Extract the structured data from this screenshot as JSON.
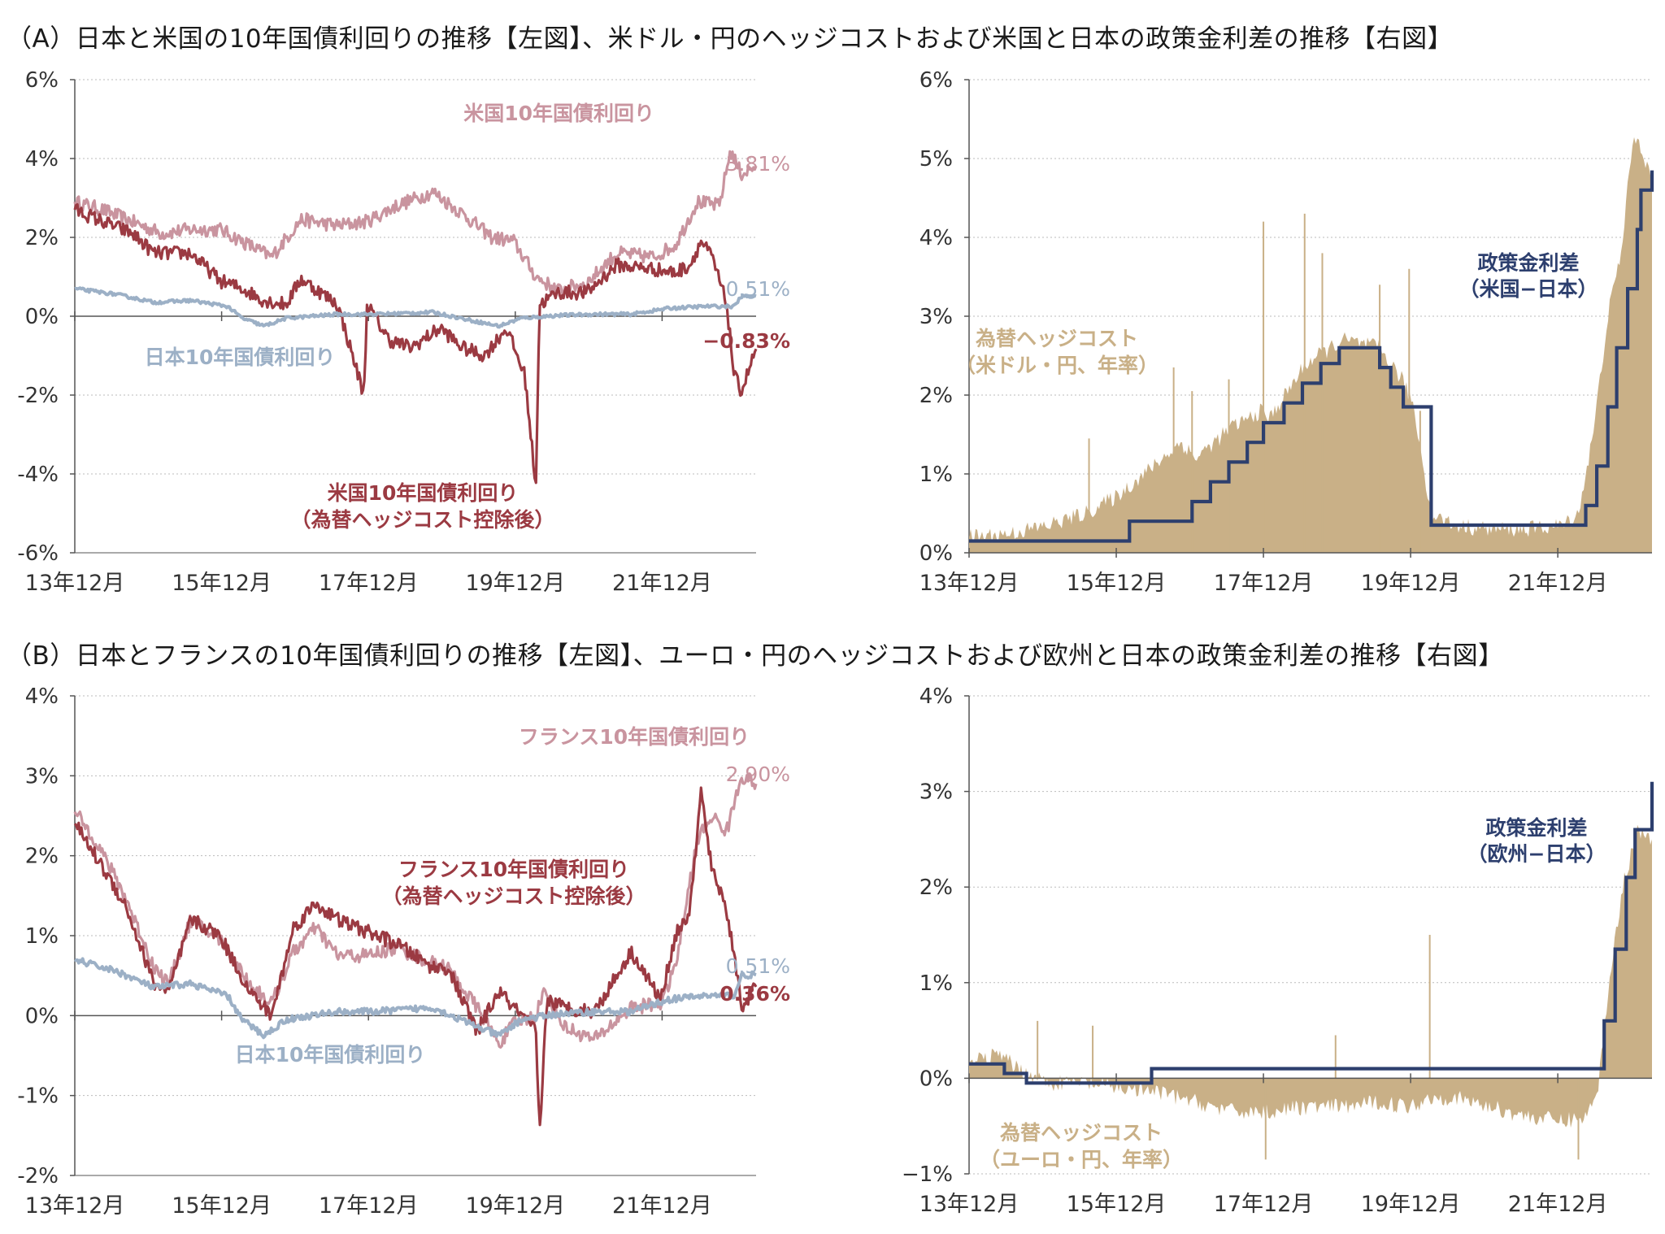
{
  "section_a": {
    "title": "（A）日本と米国の10年国債利回りの推移【左図】、米ドル・円のヘッジコストおよび米国と日本の政策金利差の推移【右図】"
  },
  "section_b": {
    "title": "（B）日本とフランスの10年国債利回りの推移【左図】、ユーロ・円のヘッジコストおよび欧州と日本の政策金利差の推移【右図】"
  },
  "colors": {
    "foreign_yield": "#c9949f",
    "hedged_yield": "#9b3a42",
    "japan_yield": "#9cb0c6",
    "hedge_cost": "#c9b087",
    "policy_diff": "#2d3f6e",
    "axis": "#555555",
    "grid": "#bbbbbb",
    "tick_text": "#333333"
  },
  "chart_data": [
    {
      "id": "a-left",
      "type": "line",
      "ylim": [
        -6,
        6
      ],
      "yticks": [
        "6%",
        "4%",
        "2%",
        "0%",
        "-2%",
        "-4%",
        "-6%"
      ],
      "yticks_values": [
        6,
        4,
        2,
        0,
        -2,
        -4,
        -6
      ],
      "xticks": [
        "13年12月",
        "15年12月",
        "17年12月",
        "19年12月",
        "21年12月"
      ],
      "xticks_values": [
        2013.92,
        2015.92,
        2017.92,
        2019.92,
        2021.92
      ],
      "xlim": [
        2013.92,
        2023.2
      ],
      "grid": true,
      "series": [
        {
          "name": "米国10年国債利回り",
          "role": "foreign",
          "x": [
            2013.92,
            2014.3,
            2014.7,
            2015.1,
            2015.5,
            2015.9,
            2016.3,
            2016.6,
            2017.0,
            2017.5,
            2017.9,
            2018.3,
            2018.8,
            2019.2,
            2019.6,
            2019.9,
            2020.2,
            2020.5,
            2020.9,
            2021.3,
            2021.8,
            2022.1,
            2022.4,
            2022.7,
            2022.85,
            2023.0,
            2023.2
          ],
          "values": [
            2.9,
            2.7,
            2.4,
            2.1,
            2.2,
            2.2,
            1.8,
            1.5,
            2.45,
            2.3,
            2.4,
            2.8,
            3.15,
            2.6,
            2.0,
            1.9,
            1.0,
            0.65,
            0.85,
            1.6,
            1.5,
            1.8,
            2.9,
            2.8,
            4.2,
            3.6,
            3.81
          ]
        },
        {
          "name": "米国10年国債利回り（為替ヘッジコスト控除後）",
          "role": "hedged",
          "x": [
            2013.92,
            2014.3,
            2014.7,
            2015.0,
            2015.5,
            2015.9,
            2016.2,
            2016.5,
            2016.8,
            2017.0,
            2017.5,
            2017.86,
            2017.9,
            2018.2,
            2018.5,
            2018.9,
            2019.2,
            2019.5,
            2019.8,
            2020.05,
            2020.2,
            2020.25,
            2020.5,
            2020.9,
            2021.3,
            2021.8,
            2022.1,
            2022.3,
            2022.45,
            2022.6,
            2022.8,
            2022.9,
            2023.0,
            2023.2
          ],
          "values": [
            2.7,
            2.4,
            2.1,
            1.6,
            1.6,
            0.9,
            0.7,
            0.4,
            0.3,
            0.95,
            0.3,
            -2.0,
            0.3,
            -0.6,
            -0.8,
            -0.3,
            -0.8,
            -1.0,
            -0.3,
            -1.5,
            -4.3,
            0.3,
            0.6,
            0.6,
            1.3,
            1.2,
            1.1,
            1.3,
            1.9,
            1.5,
            0.3,
            -1.5,
            -1.9,
            -0.83
          ]
        },
        {
          "name": "日本10年国債利回り",
          "role": "japan",
          "x": [
            2013.92,
            2014.5,
            2015.0,
            2015.5,
            2016.0,
            2016.2,
            2016.5,
            2016.8,
            2017.5,
            2018.0,
            2018.8,
            2019.3,
            2019.7,
            2020.0,
            2020.5,
            2021.0,
            2021.5,
            2022.0,
            2022.5,
            2022.9,
            2023.0,
            2023.2
          ],
          "values": [
            0.7,
            0.55,
            0.35,
            0.4,
            0.25,
            -0.05,
            -0.25,
            -0.05,
            0.05,
            0.05,
            0.1,
            -0.1,
            -0.25,
            -0.05,
            0.02,
            0.05,
            0.05,
            0.2,
            0.25,
            0.25,
            0.5,
            0.51
          ]
        }
      ],
      "labels": [
        {
          "text": "米国10年国債利回り",
          "role": "foreign"
        },
        {
          "text": "日本10年国債利回り",
          "role": "japan"
        },
        {
          "text": "米国10年国債利回り",
          "role": "hedged"
        },
        {
          "text": "（為替ヘッジコスト控除後）",
          "role": "hedged"
        }
      ],
      "end_labels": [
        {
          "text": "3.81%",
          "role": "foreign",
          "value": 3.81
        },
        {
          "text": "0.51%",
          "role": "japan",
          "value": 0.51
        },
        {
          "text": "−0.83%",
          "role": "hedged",
          "value": -0.83
        }
      ]
    },
    {
      "id": "a-right",
      "type": "area",
      "ylim": [
        0,
        6
      ],
      "yticks": [
        "6%",
        "5%",
        "4%",
        "3%",
        "2%",
        "1%",
        "0%"
      ],
      "yticks_values": [
        6,
        5,
        4,
        3,
        2,
        1,
        0
      ],
      "xticks": [
        "13年12月",
        "15年12月",
        "17年12月",
        "19年12月",
        "21年12月"
      ],
      "xticks_values": [
        2013.92,
        2015.92,
        2017.92,
        2019.92,
        2021.92
      ],
      "xlim": [
        2013.92,
        2023.2
      ],
      "grid": true,
      "area_series": {
        "name": "為替ヘッジコスト（米ドル・円、年率）",
        "role": "hedge_cost",
        "x": [
          2013.92,
          2014.5,
          2015.0,
          2015.5,
          2015.9,
          2016.3,
          2016.8,
          2017.0,
          2017.5,
          2017.9,
          2018.0,
          2018.5,
          2019.0,
          2019.5,
          2019.8,
          2019.95,
          2020.2,
          2020.5,
          2021.0,
          2021.5,
          2022.0,
          2022.2,
          2022.4,
          2022.6,
          2022.8,
          2022.9,
          2023.0,
          2023.2
        ],
        "values": [
          0.2,
          0.25,
          0.35,
          0.5,
          0.7,
          1.0,
          1.4,
          1.2,
          1.6,
          1.8,
          1.7,
          2.4,
          2.7,
          2.6,
          2.2,
          1.9,
          0.5,
          0.35,
          0.3,
          0.3,
          0.35,
          0.5,
          1.5,
          3.0,
          3.9,
          5.0,
          5.3,
          4.7
        ],
        "spikes": [
          {
            "x": 2015.55,
            "value": 1.45
          },
          {
            "x": 2016.7,
            "value": 2.35
          },
          {
            "x": 2016.95,
            "value": 2.05
          },
          {
            "x": 2017.45,
            "value": 2.2
          },
          {
            "x": 2017.92,
            "value": 4.2
          },
          {
            "x": 2018.48,
            "value": 4.3
          },
          {
            "x": 2018.72,
            "value": 3.8
          },
          {
            "x": 2019.5,
            "value": 3.4
          },
          {
            "x": 2019.9,
            "value": 3.6
          },
          {
            "x": 2020.05,
            "value": 1.8
          }
        ]
      },
      "step_series": {
        "name": "政策金利差（米国−日本）",
        "role": "policy_diff",
        "x": [
          2013.92,
          2015.92,
          2016.1,
          2016.95,
          2017.2,
          2017.45,
          2017.7,
          2017.92,
          2018.2,
          2018.45,
          2018.7,
          2018.95,
          2019.5,
          2019.65,
          2019.82,
          2020.2,
          2022.2,
          2022.3,
          2022.45,
          2022.6,
          2022.72,
          2022.87,
          2023.0,
          2023.05,
          2023.2
        ],
        "values": [
          0.15,
          0.15,
          0.4,
          0.65,
          0.9,
          1.15,
          1.4,
          1.65,
          1.9,
          2.15,
          2.4,
          2.6,
          2.35,
          2.1,
          1.85,
          0.35,
          0.35,
          0.6,
          1.1,
          1.85,
          2.6,
          3.35,
          4.1,
          4.6,
          4.85
        ]
      },
      "labels": [
        {
          "text": "政策金利差",
          "role": "policy_diff"
        },
        {
          "text": "（米国−日本）",
          "role": "policy_diff"
        },
        {
          "text": "為替ヘッジコスト",
          "role": "hedge_cost"
        },
        {
          "text": "（米ドル・円、年率）",
          "role": "hedge_cost"
        }
      ]
    },
    {
      "id": "b-left",
      "type": "line",
      "ylim": [
        -2,
        4
      ],
      "yticks": [
        "4%",
        "3%",
        "2%",
        "1%",
        "0%",
        "-1%",
        "-2%"
      ],
      "yticks_values": [
        4,
        3,
        2,
        1,
        0,
        -1,
        -2
      ],
      "xticks": [
        "13年12月",
        "15年12月",
        "17年12月",
        "19年12月",
        "21年12月"
      ],
      "xticks_values": [
        2013.92,
        2015.92,
        2017.92,
        2019.92,
        2021.92
      ],
      "xlim": [
        2013.92,
        2023.2
      ],
      "grid": true,
      "series": [
        {
          "name": "フランス10年国債利回り",
          "role": "foreign",
          "x": [
            2013.92,
            2014.2,
            2014.6,
            2015.0,
            2015.2,
            2015.5,
            2015.9,
            2016.3,
            2016.6,
            2016.9,
            2017.2,
            2017.5,
            2017.9,
            2018.3,
            2018.8,
            2019.0,
            2019.4,
            2019.7,
            2019.9,
            2020.2,
            2020.3,
            2020.6,
            2021.0,
            2021.5,
            2021.9,
            2022.1,
            2022.4,
            2022.6,
            2022.8,
            2023.0,
            2023.2
          ],
          "values": [
            2.55,
            2.2,
            1.5,
            0.6,
            0.4,
            1.2,
            0.95,
            0.4,
            0.15,
            0.8,
            1.1,
            0.75,
            0.75,
            0.85,
            0.65,
            0.6,
            0.1,
            -0.35,
            -0.1,
            0.0,
            0.3,
            -0.15,
            -0.3,
            0.1,
            0.15,
            0.6,
            2.2,
            2.5,
            2.3,
            3.0,
            2.9
          ]
        },
        {
          "name": "フランス10年国債利回り（為替ヘッジコスト控除後）",
          "role": "hedged",
          "x": [
            2013.92,
            2014.2,
            2014.6,
            2015.0,
            2015.2,
            2015.5,
            2015.9,
            2016.3,
            2016.6,
            2016.9,
            2017.2,
            2017.5,
            2017.9,
            2018.3,
            2018.8,
            2019.0,
            2019.4,
            2019.7,
            2019.9,
            2020.2,
            2020.25,
            2020.35,
            2020.6,
            2021.0,
            2021.5,
            2021.9,
            2022.1,
            2022.3,
            2022.45,
            2022.6,
            2022.75,
            2022.9,
            2023.0,
            2023.2
          ],
          "values": [
            2.4,
            2.0,
            1.4,
            0.4,
            0.3,
            1.2,
            1.0,
            0.3,
            0.0,
            1.1,
            1.4,
            1.2,
            1.05,
            0.9,
            0.6,
            0.6,
            -0.2,
            0.3,
            0.1,
            -0.2,
            -1.5,
            0.2,
            0.1,
            0.05,
            0.8,
            0.2,
            1.0,
            1.3,
            2.8,
            1.8,
            1.5,
            0.8,
            0.1,
            0.36
          ]
        },
        {
          "name": "日本10年国債利回り",
          "role": "japan",
          "x": [
            2013.92,
            2014.5,
            2015.0,
            2015.5,
            2016.0,
            2016.2,
            2016.5,
            2016.8,
            2017.5,
            2018.0,
            2018.8,
            2019.3,
            2019.7,
            2020.0,
            2020.5,
            2021.0,
            2021.5,
            2022.0,
            2022.5,
            2022.9,
            2023.0,
            2023.2
          ],
          "values": [
            0.7,
            0.55,
            0.35,
            0.4,
            0.25,
            -0.05,
            -0.25,
            -0.05,
            0.05,
            0.05,
            0.1,
            -0.1,
            -0.25,
            -0.05,
            0.02,
            0.05,
            0.05,
            0.2,
            0.25,
            0.25,
            0.5,
            0.51
          ]
        }
      ],
      "labels": [
        {
          "text": "フランス10年国債利回り",
          "role": "foreign"
        },
        {
          "text": "フランス10年国債利回り",
          "role": "hedged"
        },
        {
          "text": "（為替ヘッジコスト控除後）",
          "role": "hedged"
        },
        {
          "text": "日本10年国債利回り",
          "role": "japan"
        }
      ],
      "end_labels": [
        {
          "text": "2.90%",
          "role": "foreign",
          "value": 2.9
        },
        {
          "text": "0.51%",
          "role": "japan",
          "value": 0.51
        },
        {
          "text": "0.36%",
          "role": "hedged",
          "value": 0.36
        }
      ]
    },
    {
      "id": "b-right",
      "type": "area",
      "ylim": [
        -1,
        4
      ],
      "yticks": [
        "4%",
        "3%",
        "2%",
        "1%",
        "0%",
        "−1%"
      ],
      "yticks_values": [
        4,
        3,
        2,
        1,
        0,
        -1
      ],
      "xticks": [
        "13年12月",
        "15年12月",
        "17年12月",
        "19年12月",
        "21年12月"
      ],
      "xticks_values": [
        2013.92,
        2015.92,
        2017.92,
        2019.92,
        2021.92
      ],
      "xlim": [
        2013.92,
        2023.2
      ],
      "grid": true,
      "area_series": {
        "name": "為替ヘッジコスト（ユーロ・円、年率）",
        "role": "hedge_cost",
        "x": [
          2013.92,
          2014.3,
          2014.6,
          2015.0,
          2015.5,
          2015.9,
          2016.5,
          2017.0,
          2017.5,
          2018.0,
          2018.5,
          2019.0,
          2019.5,
          2019.9,
          2020.2,
          2020.5,
          2021.0,
          2021.5,
          2022.0,
          2022.3,
          2022.45,
          2022.55,
          2022.65,
          2022.8,
          2023.0,
          2023.2
        ],
        "values": [
          0.15,
          0.25,
          0.1,
          -0.05,
          -0.05,
          -0.1,
          -0.15,
          -0.25,
          -0.35,
          -0.35,
          -0.3,
          -0.3,
          -0.25,
          -0.3,
          -0.2,
          -0.2,
          -0.3,
          -0.4,
          -0.45,
          -0.4,
          -0.2,
          0.5,
          1.2,
          2.0,
          2.6,
          2.5
        ],
        "spikes": [
          {
            "x": 2014.85,
            "value": 0.6
          },
          {
            "x": 2015.6,
            "value": 0.55
          },
          {
            "x": 2017.95,
            "value": -0.85
          },
          {
            "x": 2018.9,
            "value": 0.45
          },
          {
            "x": 2020.18,
            "value": 1.5
          },
          {
            "x": 2022.2,
            "value": -0.85
          }
        ]
      },
      "step_series": {
        "name": "政策金利差（欧州−日本）",
        "role": "policy_diff",
        "x": [
          2013.92,
          2014.4,
          2014.7,
          2016.2,
          2016.4,
          2022.5,
          2022.55,
          2022.7,
          2022.85,
          2022.97,
          2023.1,
          2023.2
        ],
        "values": [
          0.15,
          0.05,
          -0.05,
          -0.05,
          0.1,
          0.1,
          0.6,
          1.35,
          2.1,
          2.6,
          2.6,
          3.1
        ]
      },
      "labels": [
        {
          "text": "政策金利差",
          "role": "policy_diff"
        },
        {
          "text": "（欧州−日本）",
          "role": "policy_diff"
        },
        {
          "text": "為替ヘッジコスト",
          "role": "hedge_cost"
        },
        {
          "text": "（ユーロ・円、年率）",
          "role": "hedge_cost"
        }
      ]
    }
  ]
}
